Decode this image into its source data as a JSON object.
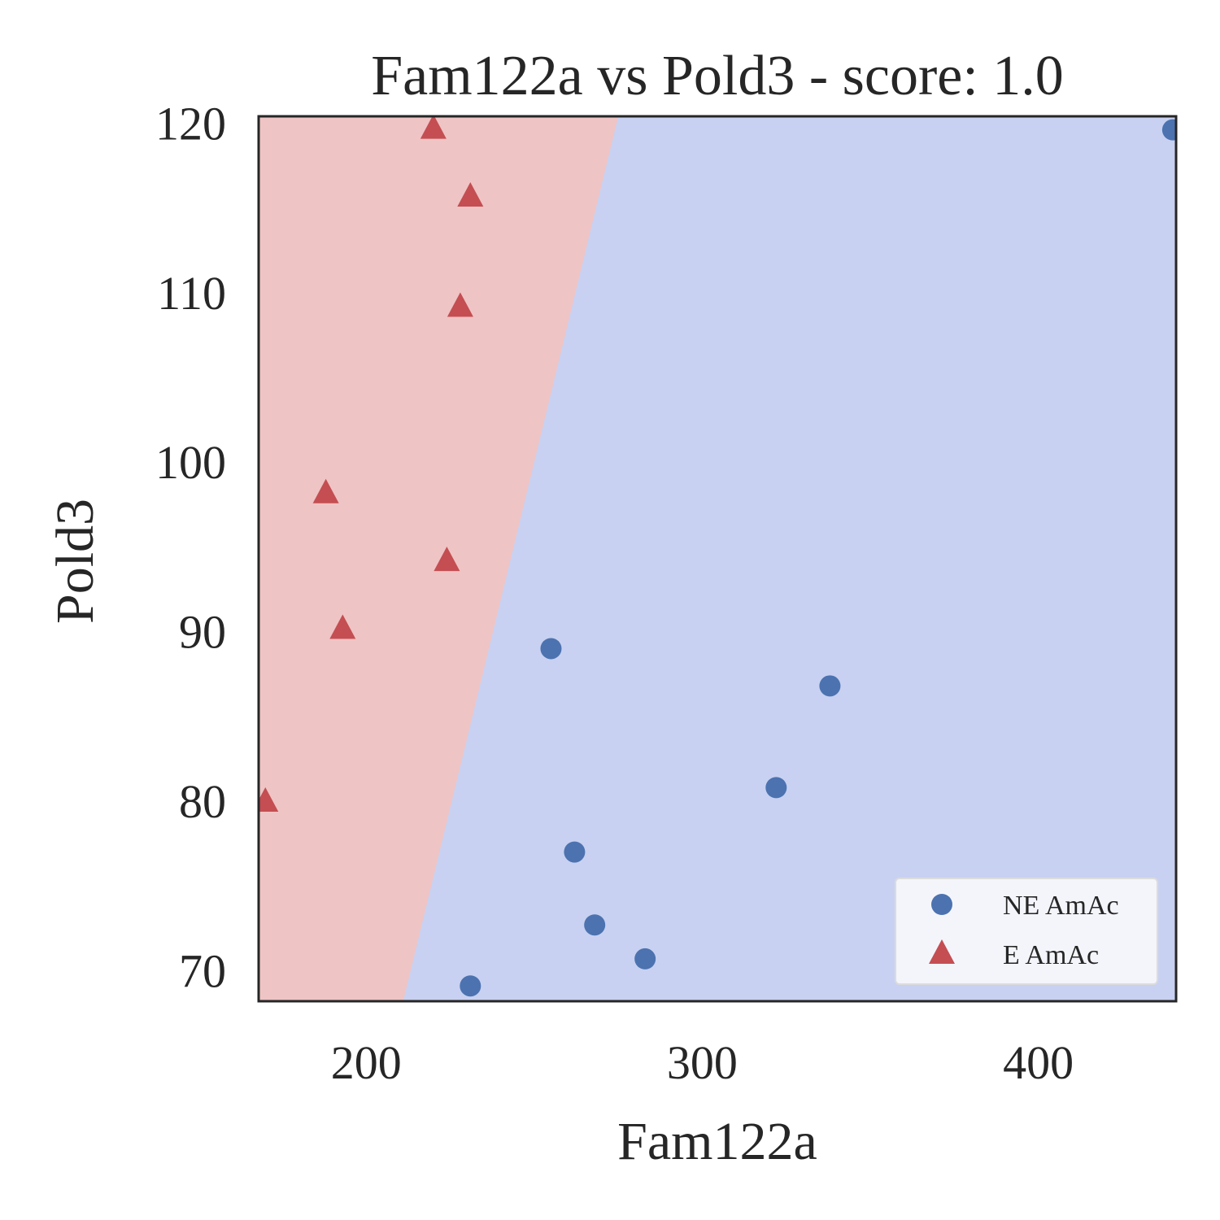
{
  "chart_data": {
    "type": "scatter",
    "title": "Fam122a vs Pold3 - score: 1.0",
    "xlabel": "Fam122a",
    "ylabel": "Pold3",
    "xlim": [
      168,
      441
    ],
    "ylim": [
      68.2,
      120.4
    ],
    "xticks": [
      200,
      300,
      400
    ],
    "yticks": [
      70,
      80,
      90,
      100,
      110,
      120
    ],
    "grid": false,
    "legend_position": "lower-right",
    "decision_boundary": {
      "points": [
        [
          211,
          68.2
        ],
        [
          275,
          120.4
        ]
      ],
      "left_region_class": "E AmAc",
      "right_region_class": "NE AmAc",
      "left_region_color": "#efc4c4",
      "right_region_color": "#c8d1f1"
    },
    "series": [
      {
        "name": "NE AmAc",
        "marker": "circle",
        "color": "#4c72b0",
        "points": [
          [
            440,
            119.6
          ],
          [
            255,
            89.0
          ],
          [
            338,
            86.8
          ],
          [
            322,
            80.8
          ],
          [
            262,
            77.0
          ],
          [
            268,
            72.7
          ],
          [
            283,
            70.7
          ],
          [
            231,
            69.1
          ]
        ]
      },
      {
        "name": "E AmAc",
        "marker": "triangle",
        "color": "#c44e52",
        "points": [
          [
            220,
            119.7
          ],
          [
            231,
            115.7
          ],
          [
            228,
            109.2
          ],
          [
            188,
            98.2
          ],
          [
            224,
            94.2
          ],
          [
            193,
            90.2
          ],
          [
            170,
            80.0
          ]
        ]
      }
    ]
  }
}
